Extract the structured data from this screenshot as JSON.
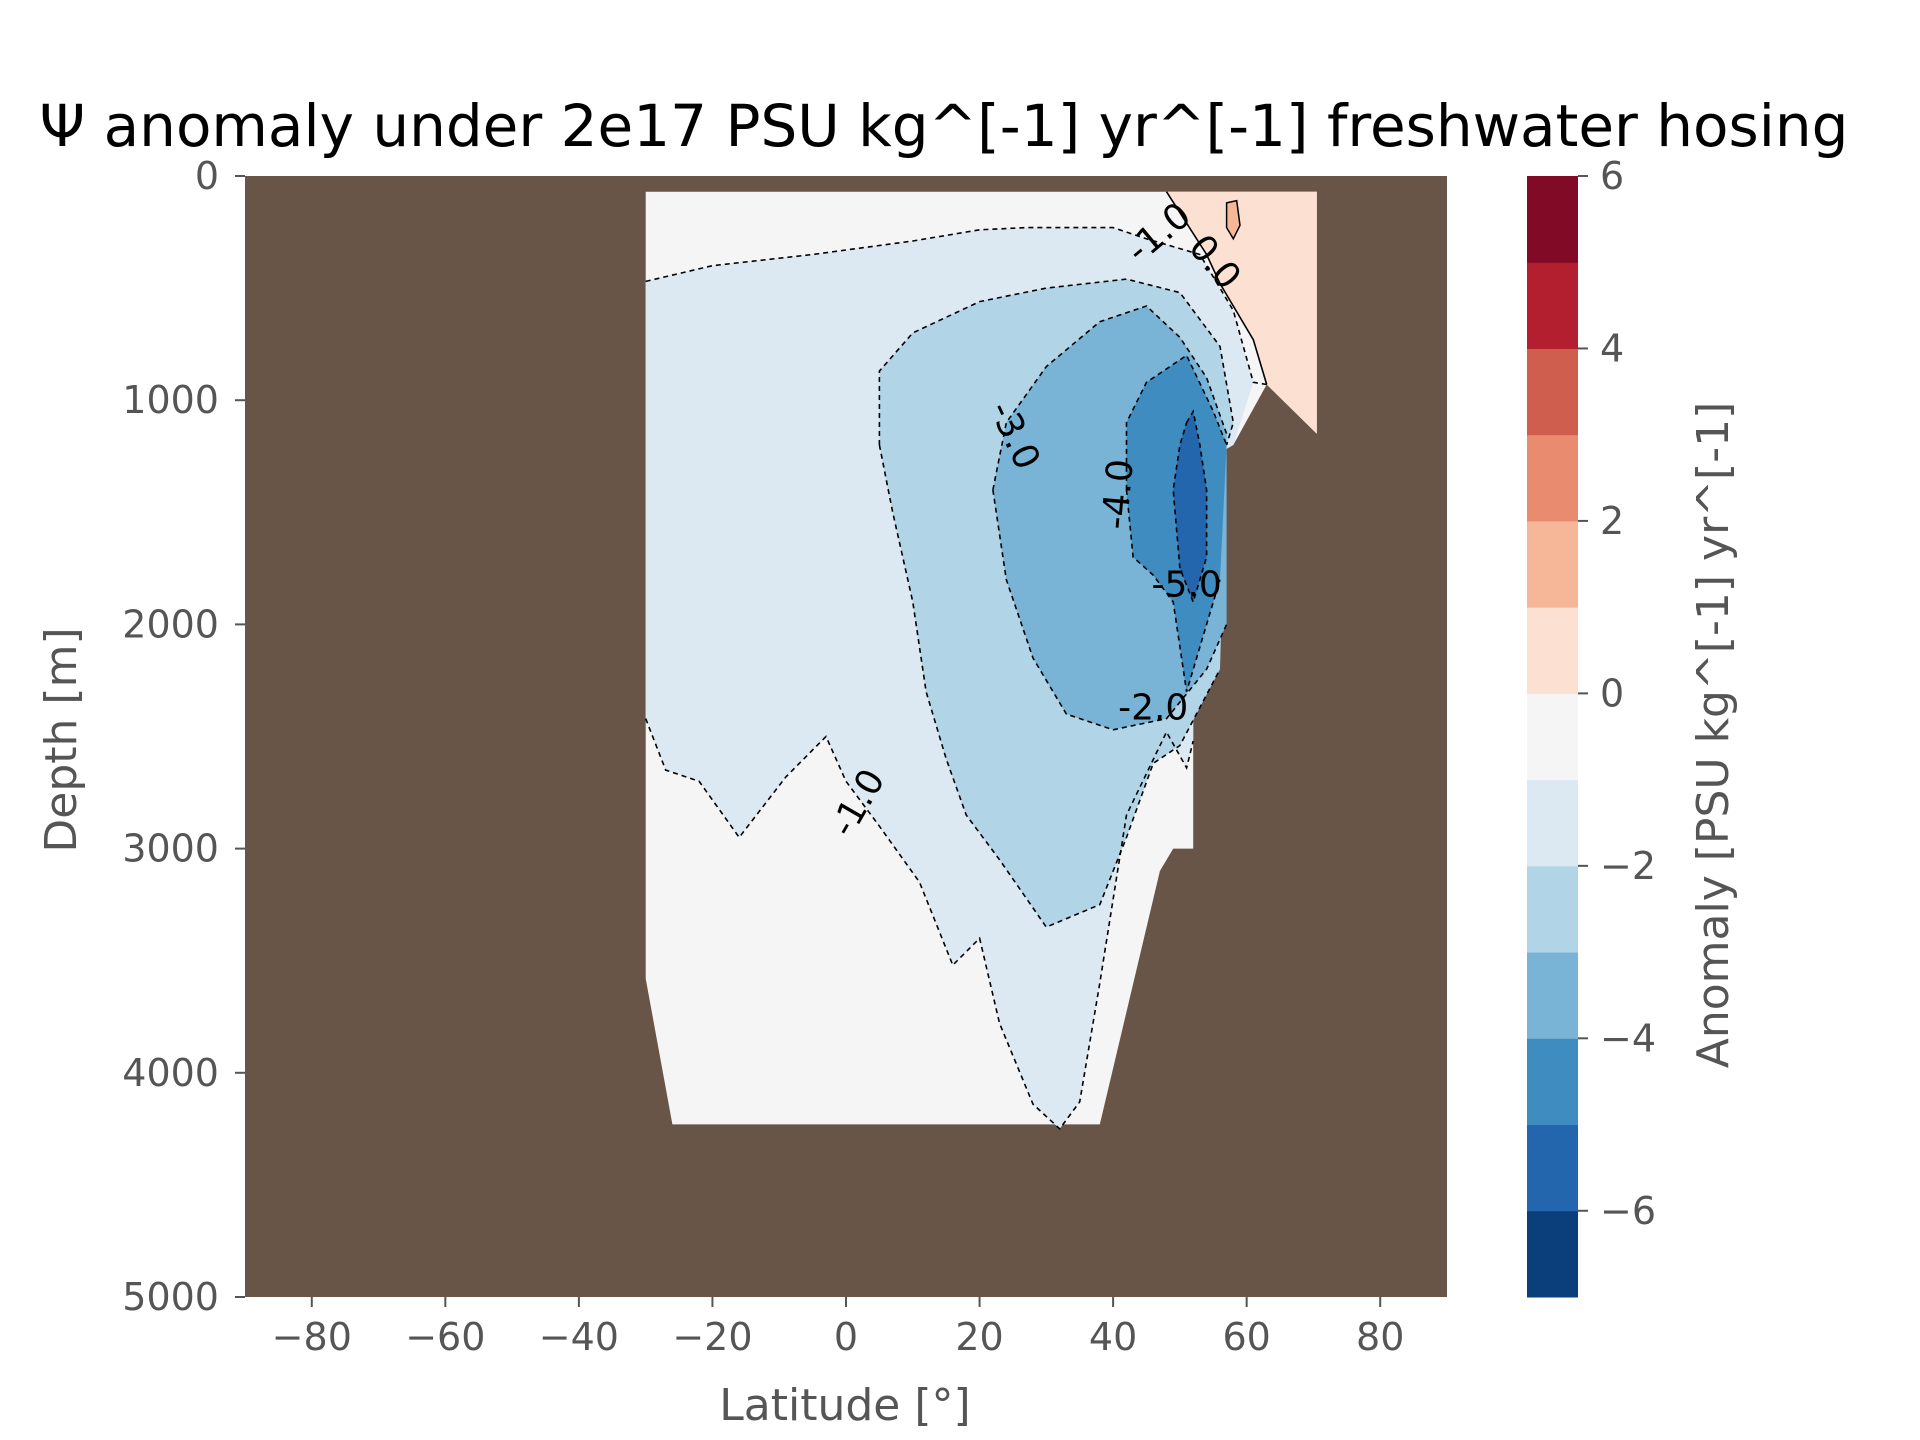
{
  "chart_data": {
    "type": "contour",
    "title": "Ψ anomaly under 2e17 PSU kg^[-1] yr^[-1] freshwater hosing",
    "xlabel": "Latitude [°]",
    "ylabel": "Depth [m]",
    "xlim": [
      -90,
      90
    ],
    "ylim": [
      5000,
      0
    ],
    "x_ticks": [
      -80,
      -60,
      -40,
      -20,
      0,
      20,
      40,
      60,
      80
    ],
    "x_tick_labels": [
      "−80",
      "−60",
      "−40",
      "−20",
      "0",
      "20",
      "40",
      "60",
      "80"
    ],
    "y_ticks": [
      0,
      1000,
      2000,
      3000,
      4000,
      5000
    ],
    "y_tick_labels": [
      "0",
      "1000",
      "2000",
      "3000",
      "4000",
      "5000"
    ],
    "colorbar": {
      "label": "Anomaly [PSU kg^[-1] yr^[-1]",
      "levels": [
        -7,
        -6,
        -5,
        -4,
        -3,
        -2,
        -1,
        0,
        1,
        2,
        3,
        4,
        5,
        6
      ],
      "colors": [
        "#0b3f7c",
        "#2366ad",
        "#3f8cc0",
        "#79b4d7",
        "#b1d4e7",
        "#dde9f2",
        "#f5f5f5",
        "#fce0d1",
        "#f6b799",
        "#e88b6e",
        "#d05e4f",
        "#b31f2f",
        "#810b26"
      ],
      "ticks": [
        -6,
        -4,
        -2,
        0,
        2,
        4,
        6
      ],
      "tick_labels": [
        "−6",
        "−4",
        "−2",
        "0",
        "2",
        "4",
        "6"
      ]
    },
    "land_color": "#695548",
    "ocean_extent_lat": [
      -30,
      71
    ],
    "contour_levels_labeled": [
      "-1.0",
      "0.0",
      "-3.0",
      "-4.0",
      "-5.0",
      "-2.0",
      "-1.0"
    ],
    "regions": [
      {
        "level_range": [
          -1,
          0
        ],
        "polygon": [
          [
            -30,
            70
          ],
          [
            70.5,
            70
          ],
          [
            70.5,
            1150
          ],
          [
            63,
            930
          ],
          [
            58,
            1200
          ],
          [
            52,
            1300
          ],
          [
            52,
            3000
          ],
          [
            49,
            3000
          ],
          [
            47,
            3100
          ],
          [
            38,
            4230
          ],
          [
            -26,
            4230
          ],
          [
            -30,
            3580
          ]
        ]
      },
      {
        "level_range": [
          0,
          1
        ],
        "polygon": [
          [
            48,
            70
          ],
          [
            70.5,
            70
          ],
          [
            70.5,
            1150
          ],
          [
            63,
            930
          ],
          [
            61,
            730
          ],
          [
            56,
            480
          ],
          [
            54,
            350
          ]
        ]
      },
      {
        "level_range": [
          0,
          1
        ],
        "polygon": [
          [
            57,
            120
          ],
          [
            58.5,
            110
          ],
          [
            59,
            220
          ],
          [
            58,
            280
          ],
          [
            57,
            230
          ]
        ]
      },
      {
        "level_range": [
          -2,
          -1
        ],
        "polygon": [
          [
            -30,
            470
          ],
          [
            -20,
            400
          ],
          [
            -5,
            350
          ],
          [
            10,
            290
          ],
          [
            20,
            240
          ],
          [
            27,
            230
          ],
          [
            40,
            230
          ],
          [
            45,
            280
          ],
          [
            53,
            350
          ],
          [
            58,
            600
          ],
          [
            61,
            920
          ],
          [
            58,
            1200
          ],
          [
            52,
            1300
          ],
          [
            52,
            2520
          ],
          [
            51,
            2640
          ],
          [
            48,
            2480
          ],
          [
            42,
            2850
          ],
          [
            38,
            3600
          ],
          [
            35,
            4130
          ],
          [
            32,
            4250
          ],
          [
            28,
            4140
          ],
          [
            23,
            3780
          ],
          [
            20,
            3400
          ],
          [
            16,
            3520
          ],
          [
            11,
            3150
          ],
          [
            5,
            2900
          ],
          [
            0,
            2700
          ],
          [
            -3,
            2500
          ],
          [
            -9,
            2680
          ],
          [
            -16,
            2950
          ],
          [
            -22,
            2700
          ],
          [
            -27,
            2650
          ],
          [
            -30,
            2420
          ]
        ]
      },
      {
        "level_range": [
          -3,
          -2
        ],
        "polygon": [
          [
            5,
            870
          ],
          [
            10,
            700
          ],
          [
            20,
            560
          ],
          [
            30,
            500
          ],
          [
            42,
            460
          ],
          [
            50,
            520
          ],
          [
            56,
            760
          ],
          [
            58,
            1100
          ],
          [
            57,
            1200
          ],
          [
            56,
            2200
          ],
          [
            50,
            2540
          ],
          [
            46,
            2620
          ],
          [
            42,
            2950
          ],
          [
            38,
            3250
          ],
          [
            30,
            3350
          ],
          [
            23,
            3050
          ],
          [
            18,
            2850
          ],
          [
            15,
            2600
          ],
          [
            12,
            2300
          ],
          [
            10,
            1900
          ],
          [
            7,
            1500
          ],
          [
            5,
            1200
          ]
        ]
      },
      {
        "level_range": [
          -4,
          -3
        ],
        "polygon": [
          [
            22,
            1400
          ],
          [
            24,
            1100
          ],
          [
            30,
            850
          ],
          [
            38,
            650
          ],
          [
            45,
            580
          ],
          [
            50,
            720
          ],
          [
            54,
            900
          ],
          [
            57,
            1150
          ],
          [
            57,
            2000
          ],
          [
            54,
            2200
          ],
          [
            48,
            2420
          ],
          [
            40,
            2470
          ],
          [
            33,
            2400
          ],
          [
            28,
            2150
          ],
          [
            24,
            1800
          ]
        ]
      },
      {
        "level_range": [
          -5,
          -4
        ],
        "polygon": [
          [
            42,
            1100
          ],
          [
            45,
            920
          ],
          [
            51,
            800
          ],
          [
            55,
            1050
          ],
          [
            57,
            1200
          ],
          [
            56,
            1800
          ],
          [
            54,
            2000
          ],
          [
            51,
            2300
          ],
          [
            49,
            1900
          ],
          [
            46,
            1780
          ],
          [
            43,
            1700
          ],
          [
            42,
            1400
          ]
        ]
      },
      {
        "level_range": [
          -6,
          -5
        ],
        "polygon": [
          [
            51,
            1100
          ],
          [
            52,
            1050
          ],
          [
            53,
            1200
          ],
          [
            54,
            1400
          ],
          [
            54,
            1700
          ],
          [
            53,
            1800
          ],
          [
            52,
            1900
          ],
          [
            50,
            1750
          ],
          [
            49,
            1400
          ],
          [
            50,
            1200
          ]
        ]
      }
    ]
  }
}
